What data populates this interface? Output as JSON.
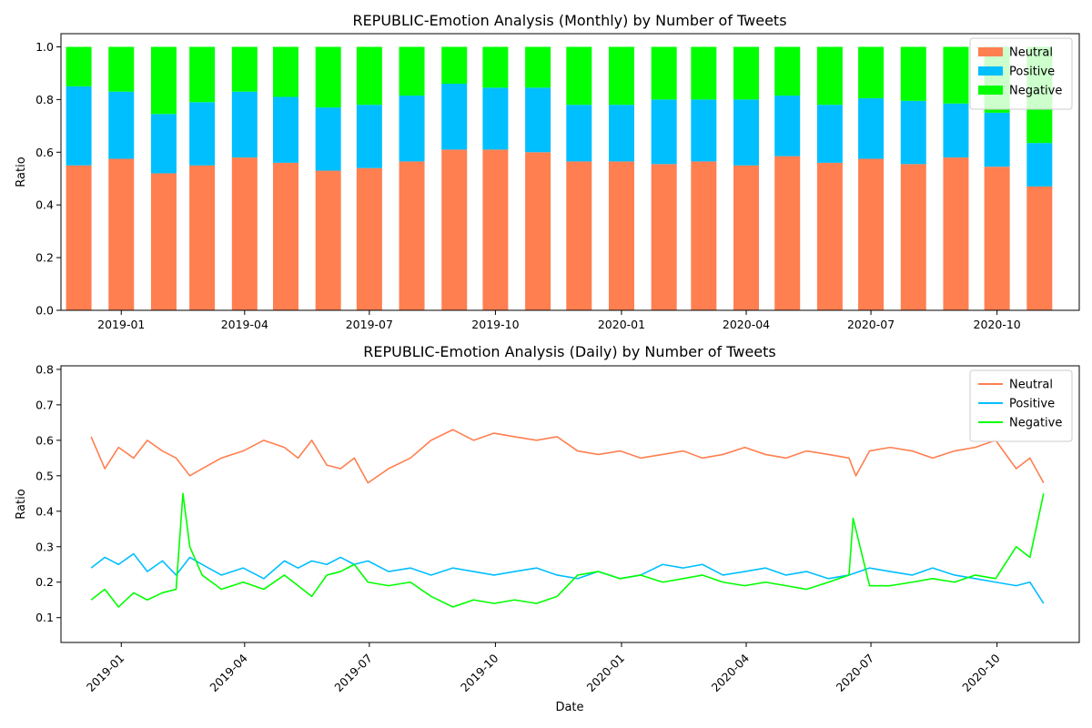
{
  "chart_data": [
    {
      "type": "bar",
      "stacked": true,
      "title": "REPUBLIC-Emotion Analysis (Monthly) by Number of Tweets",
      "xlabel": "",
      "ylabel": "Ratio",
      "ylim": [
        0,
        1.05
      ],
      "yticks": [
        0.0,
        0.2,
        0.4,
        0.6,
        0.8,
        1.0
      ],
      "xticks": [
        "2019-01",
        "2019-04",
        "2019-07",
        "2019-10",
        "2020-01",
        "2020-04",
        "2020-07",
        "2020-10"
      ],
      "legend": "top-right",
      "grid": false,
      "categories": [
        "2018-12",
        "2019-01",
        "2019-02",
        "2019-03",
        "2019-04",
        "2019-05",
        "2019-06",
        "2019-07",
        "2019-08",
        "2019-09",
        "2019-10",
        "2019-11",
        "2019-12",
        "2020-01",
        "2020-02",
        "2020-03",
        "2020-04",
        "2020-05",
        "2020-06",
        "2020-07",
        "2020-08",
        "2020-09",
        "2020-10",
        "2020-11"
      ],
      "series": [
        {
          "name": "Neutral",
          "color": "#ff7f50",
          "values": [
            0.55,
            0.575,
            0.52,
            0.55,
            0.58,
            0.56,
            0.53,
            0.54,
            0.565,
            0.61,
            0.61,
            0.6,
            0.565,
            0.565,
            0.555,
            0.565,
            0.55,
            0.585,
            0.56,
            0.575,
            0.555,
            0.58,
            0.545,
            0.47
          ]
        },
        {
          "name": "Positive",
          "color": "#00bfff",
          "values": [
            0.3,
            0.255,
            0.225,
            0.24,
            0.25,
            0.25,
            0.24,
            0.24,
            0.25,
            0.25,
            0.235,
            0.245,
            0.215,
            0.215,
            0.245,
            0.235,
            0.25,
            0.23,
            0.22,
            0.23,
            0.24,
            0.205,
            0.205,
            0.165
          ]
        },
        {
          "name": "Negative",
          "color": "#00ff00",
          "values": [
            0.15,
            0.17,
            0.255,
            0.21,
            0.17,
            0.19,
            0.23,
            0.22,
            0.185,
            0.14,
            0.155,
            0.155,
            0.22,
            0.22,
            0.2,
            0.2,
            0.2,
            0.185,
            0.22,
            0.195,
            0.205,
            0.215,
            0.25,
            0.365
          ]
        }
      ]
    },
    {
      "type": "line",
      "title": "REPUBLIC-Emotion Analysis (Daily) by Number of Tweets",
      "xlabel": "Date",
      "ylabel": "Ratio",
      "ylim": [
        0.03,
        0.81
      ],
      "yticks": [
        0.1,
        0.2,
        0.3,
        0.4,
        0.5,
        0.6,
        0.7,
        0.8
      ],
      "xticks": [
        "2019-01",
        "2019-04",
        "2019-07",
        "2019-10",
        "2020-01",
        "2020-04",
        "2020-07",
        "2020-10"
      ],
      "xrange": [
        "2018-12-10",
        "2020-11-04"
      ],
      "legend": "top-right",
      "grid": false,
      "series": [
        {
          "name": "Neutral",
          "color": "#ff7f50",
          "points": [
            [
              "2018-12-10",
              0.61
            ],
            [
              "2018-12-20",
              0.52
            ],
            [
              "2018-12-30",
              0.58
            ],
            [
              "2019-01-10",
              0.55
            ],
            [
              "2019-01-20",
              0.6
            ],
            [
              "2019-01-31",
              0.57
            ],
            [
              "2019-02-10",
              0.55
            ],
            [
              "2019-02-20",
              0.5
            ],
            [
              "2019-03-01",
              0.52
            ],
            [
              "2019-03-15",
              0.55
            ],
            [
              "2019-03-31",
              0.57
            ],
            [
              "2019-04-15",
              0.6
            ],
            [
              "2019-04-30",
              0.58
            ],
            [
              "2019-05-10",
              0.55
            ],
            [
              "2019-05-20",
              0.6
            ],
            [
              "2019-05-31",
              0.53
            ],
            [
              "2019-06-10",
              0.52
            ],
            [
              "2019-06-20",
              0.55
            ],
            [
              "2019-06-30",
              0.48
            ],
            [
              "2019-07-15",
              0.52
            ],
            [
              "2019-07-31",
              0.55
            ],
            [
              "2019-08-15",
              0.6
            ],
            [
              "2019-08-31",
              0.63
            ],
            [
              "2019-09-15",
              0.6
            ],
            [
              "2019-09-30",
              0.62
            ],
            [
              "2019-10-15",
              0.61
            ],
            [
              "2019-10-31",
              0.6
            ],
            [
              "2019-11-15",
              0.61
            ],
            [
              "2019-11-30",
              0.57
            ],
            [
              "2019-12-15",
              0.56
            ],
            [
              "2019-12-31",
              0.57
            ],
            [
              "2020-01-15",
              0.55
            ],
            [
              "2020-01-31",
              0.56
            ],
            [
              "2020-02-15",
              0.57
            ],
            [
              "2020-02-29",
              0.55
            ],
            [
              "2020-03-15",
              0.56
            ],
            [
              "2020-03-31",
              0.58
            ],
            [
              "2020-04-15",
              0.56
            ],
            [
              "2020-04-30",
              0.55
            ],
            [
              "2020-05-15",
              0.57
            ],
            [
              "2020-05-31",
              0.56
            ],
            [
              "2020-06-15",
              0.55
            ],
            [
              "2020-06-20",
              0.5
            ],
            [
              "2020-06-30",
              0.57
            ],
            [
              "2020-07-15",
              0.58
            ],
            [
              "2020-07-31",
              0.57
            ],
            [
              "2020-08-15",
              0.55
            ],
            [
              "2020-08-31",
              0.57
            ],
            [
              "2020-09-15",
              0.58
            ],
            [
              "2020-09-30",
              0.6
            ],
            [
              "2020-10-15",
              0.52
            ],
            [
              "2020-10-25",
              0.55
            ],
            [
              "2020-11-04",
              0.48
            ]
          ]
        },
        {
          "name": "Positive",
          "color": "#00bfff",
          "points": [
            [
              "2018-12-10",
              0.24
            ],
            [
              "2018-12-20",
              0.27
            ],
            [
              "2018-12-30",
              0.25
            ],
            [
              "2019-01-10",
              0.28
            ],
            [
              "2019-01-20",
              0.23
            ],
            [
              "2019-01-31",
              0.26
            ],
            [
              "2019-02-10",
              0.22
            ],
            [
              "2019-02-20",
              0.27
            ],
            [
              "2019-03-01",
              0.25
            ],
            [
              "2019-03-15",
              0.22
            ],
            [
              "2019-03-31",
              0.24
            ],
            [
              "2019-04-15",
              0.21
            ],
            [
              "2019-04-30",
              0.26
            ],
            [
              "2019-05-10",
              0.24
            ],
            [
              "2019-05-20",
              0.26
            ],
            [
              "2019-05-31",
              0.25
            ],
            [
              "2019-06-10",
              0.27
            ],
            [
              "2019-06-20",
              0.25
            ],
            [
              "2019-06-30",
              0.26
            ],
            [
              "2019-07-15",
              0.23
            ],
            [
              "2019-07-31",
              0.24
            ],
            [
              "2019-08-15",
              0.22
            ],
            [
              "2019-08-31",
              0.24
            ],
            [
              "2019-09-15",
              0.23
            ],
            [
              "2019-09-30",
              0.22
            ],
            [
              "2019-10-15",
              0.23
            ],
            [
              "2019-10-31",
              0.24
            ],
            [
              "2019-11-15",
              0.22
            ],
            [
              "2019-11-30",
              0.21
            ],
            [
              "2019-12-15",
              0.23
            ],
            [
              "2019-12-31",
              0.21
            ],
            [
              "2020-01-15",
              0.22
            ],
            [
              "2020-01-31",
              0.25
            ],
            [
              "2020-02-15",
              0.24
            ],
            [
              "2020-02-29",
              0.25
            ],
            [
              "2020-03-15",
              0.22
            ],
            [
              "2020-03-31",
              0.23
            ],
            [
              "2020-04-15",
              0.24
            ],
            [
              "2020-04-30",
              0.22
            ],
            [
              "2020-05-15",
              0.23
            ],
            [
              "2020-05-31",
              0.21
            ],
            [
              "2020-06-15",
              0.22
            ],
            [
              "2020-06-30",
              0.24
            ],
            [
              "2020-07-15",
              0.23
            ],
            [
              "2020-07-31",
              0.22
            ],
            [
              "2020-08-15",
              0.24
            ],
            [
              "2020-08-31",
              0.22
            ],
            [
              "2020-09-15",
              0.21
            ],
            [
              "2020-09-30",
              0.2
            ],
            [
              "2020-10-15",
              0.19
            ],
            [
              "2020-10-25",
              0.2
            ],
            [
              "2020-11-04",
              0.14
            ]
          ]
        },
        {
          "name": "Negative",
          "color": "#00ff00",
          "points": [
            [
              "2018-12-10",
              0.15
            ],
            [
              "2018-12-20",
              0.18
            ],
            [
              "2018-12-30",
              0.13
            ],
            [
              "2019-01-10",
              0.17
            ],
            [
              "2019-01-20",
              0.15
            ],
            [
              "2019-01-31",
              0.17
            ],
            [
              "2019-02-10",
              0.18
            ],
            [
              "2019-02-15",
              0.45
            ],
            [
              "2019-02-20",
              0.3
            ],
            [
              "2019-03-01",
              0.22
            ],
            [
              "2019-03-15",
              0.18
            ],
            [
              "2019-03-31",
              0.2
            ],
            [
              "2019-04-15",
              0.18
            ],
            [
              "2019-04-30",
              0.22
            ],
            [
              "2019-05-10",
              0.19
            ],
            [
              "2019-05-20",
              0.16
            ],
            [
              "2019-05-31",
              0.22
            ],
            [
              "2019-06-10",
              0.23
            ],
            [
              "2019-06-20",
              0.25
            ],
            [
              "2019-06-30",
              0.2
            ],
            [
              "2019-07-15",
              0.19
            ],
            [
              "2019-07-31",
              0.2
            ],
            [
              "2019-08-15",
              0.16
            ],
            [
              "2019-08-31",
              0.13
            ],
            [
              "2019-09-15",
              0.15
            ],
            [
              "2019-09-30",
              0.14
            ],
            [
              "2019-10-15",
              0.15
            ],
            [
              "2019-10-31",
              0.14
            ],
            [
              "2019-11-15",
              0.16
            ],
            [
              "2019-11-30",
              0.22
            ],
            [
              "2019-12-15",
              0.23
            ],
            [
              "2019-12-31",
              0.21
            ],
            [
              "2020-01-15",
              0.22
            ],
            [
              "2020-01-31",
              0.2
            ],
            [
              "2020-02-15",
              0.21
            ],
            [
              "2020-02-29",
              0.22
            ],
            [
              "2020-03-15",
              0.2
            ],
            [
              "2020-03-31",
              0.19
            ],
            [
              "2020-04-15",
              0.2
            ],
            [
              "2020-04-30",
              0.19
            ],
            [
              "2020-05-15",
              0.18
            ],
            [
              "2020-05-31",
              0.2
            ],
            [
              "2020-06-15",
              0.22
            ],
            [
              "2020-06-18",
              0.38
            ],
            [
              "2020-06-30",
              0.19
            ],
            [
              "2020-07-15",
              0.19
            ],
            [
              "2020-07-31",
              0.2
            ],
            [
              "2020-08-15",
              0.21
            ],
            [
              "2020-08-31",
              0.2
            ],
            [
              "2020-09-15",
              0.22
            ],
            [
              "2020-09-30",
              0.21
            ],
            [
              "2020-10-15",
              0.3
            ],
            [
              "2020-10-25",
              0.27
            ],
            [
              "2020-11-04",
              0.45
            ]
          ]
        }
      ]
    }
  ]
}
